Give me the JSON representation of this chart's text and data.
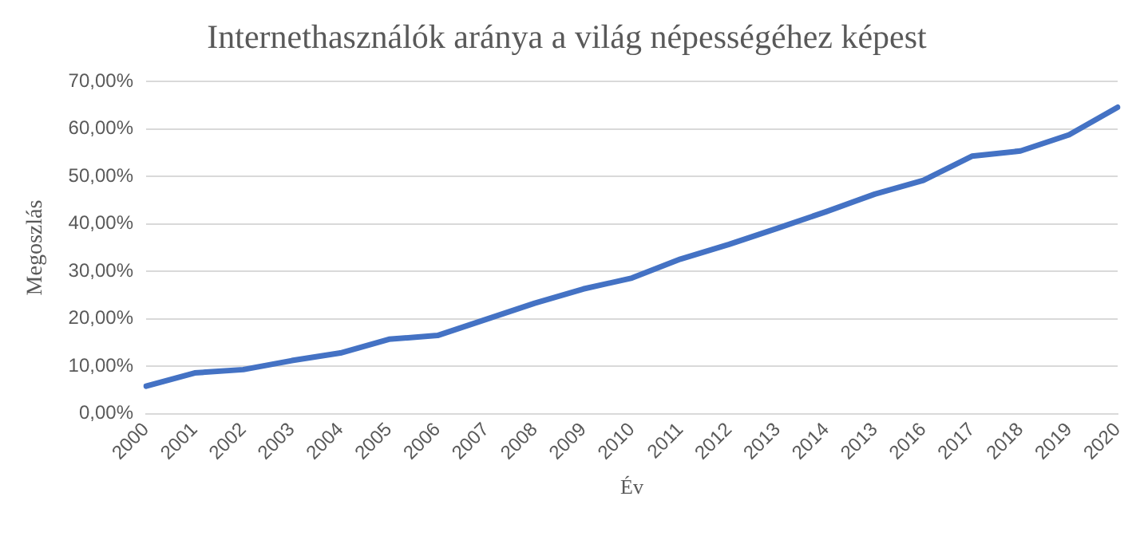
{
  "chart_data": {
    "type": "line",
    "title": "Internethasználók aránya a világ népességéhez képest",
    "xlabel": "Év",
    "ylabel": "Megoszlás",
    "categories": [
      "2000",
      "2001",
      "2002",
      "2003",
      "2004",
      "2005",
      "2006",
      "2007",
      "2008",
      "2009",
      "2010",
      "2011",
      "2012",
      "2013",
      "2014",
      "2013",
      "2016",
      "2017",
      "2018",
      "2019",
      "2020"
    ],
    "series": [
      {
        "color": "#4472c4",
        "values": [
          5.8,
          8.6,
          9.3,
          11.2,
          12.8,
          15.7,
          16.5,
          19.9,
          23.3,
          26.3,
          28.6,
          32.6,
          35.7,
          39.1,
          42.6,
          46.3,
          49.2,
          54.3,
          55.4,
          58.8,
          64.6
        ]
      }
    ],
    "ylim": [
      0,
      70
    ],
    "yticks": [
      {
        "value": 0,
        "label": "0,00%"
      },
      {
        "value": 10,
        "label": "10,00%"
      },
      {
        "value": 20,
        "label": "20,00%"
      },
      {
        "value": 30,
        "label": "30,00%"
      },
      {
        "value": 40,
        "label": "40,00%"
      },
      {
        "value": 50,
        "label": "50,00%"
      },
      {
        "value": 60,
        "label": "60,00%"
      },
      {
        "value": 70,
        "label": "70,00%"
      }
    ],
    "grid": "y",
    "legend": false,
    "marker": "none",
    "line_style": "solid"
  }
}
